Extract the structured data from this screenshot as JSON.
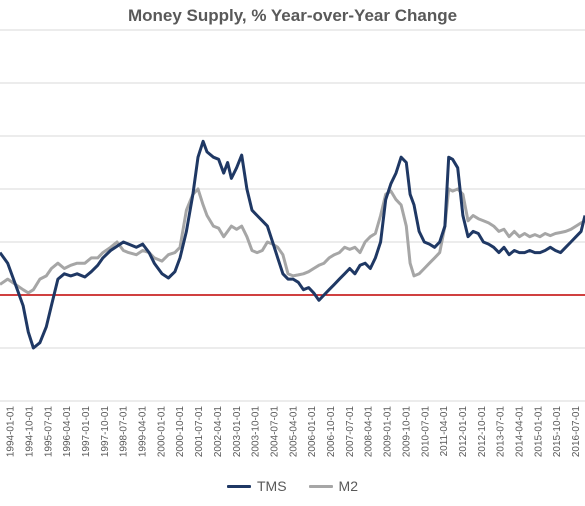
{
  "chart_data": {
    "type": "line",
    "title": "Money Supply, % Year-over-Year Change",
    "xlabel": "",
    "ylabel": "",
    "x_tick_labels": [
      "1994-01-01",
      "1994-10-01",
      "1995-07-01",
      "1996-04-01",
      "1997-01-01",
      "1997-10-01",
      "1998-07-01",
      "1999-04-01",
      "2000-01-01",
      "2000-10-01",
      "2001-07-01",
      "2002-04-01",
      "2003-01-01",
      "2003-10-01",
      "2004-07-01",
      "2005-04-01",
      "2006-01-01",
      "2006-10-01",
      "2007-07-01",
      "2008-04-01",
      "2009-01-01",
      "2009-10-01",
      "2010-07-01",
      "2011-04-01",
      "2012-01-01",
      "2012-10-01",
      "2013-07-01",
      "2014-04-01",
      "2015-01-01",
      "2015-10-01",
      "2016-07-01"
    ],
    "y_gridlines": [
      -10,
      -5,
      0,
      5,
      10,
      15,
      20,
      25
    ],
    "ylim": [
      -10,
      25
    ],
    "reference_line": 0,
    "grid": true,
    "legend_position": "bottom",
    "colors": {
      "TMS": "#1f3864",
      "M2": "#a6a6a6",
      "reference": "#c00000",
      "grid": "#d9d9d9"
    },
    "series": [
      {
        "name": "TMS",
        "x": [
          1994.0,
          1994.3,
          1994.6,
          1994.9,
          1995.1,
          1995.3,
          1995.55,
          1995.8,
          1996.0,
          1996.25,
          1996.5,
          1996.75,
          1997.0,
          1997.3,
          1997.55,
          1997.8,
          1998.0,
          1998.3,
          1998.55,
          1998.8,
          1999.0,
          1999.3,
          1999.55,
          1999.8,
          2000.0,
          2000.3,
          2000.55,
          2000.8,
          2001.0,
          2001.25,
          2001.5,
          2001.7,
          2001.9,
          2002.05,
          2002.3,
          2002.5,
          2002.7,
          2002.85,
          2003.0,
          2003.2,
          2003.4,
          2003.6,
          2003.8,
          2004.0,
          2004.2,
          2004.4,
          2004.6,
          2004.8,
          2005.0,
          2005.2,
          2005.4,
          2005.6,
          2005.8,
          2006.0,
          2006.2,
          2006.4,
          2006.6,
          2006.8,
          2007.0,
          2007.2,
          2007.4,
          2007.6,
          2007.8,
          2008.0,
          2008.2,
          2008.4,
          2008.6,
          2008.8,
          2009.0,
          2009.2,
          2009.4,
          2009.6,
          2009.8,
          2009.95,
          2010.1,
          2010.3,
          2010.5,
          2010.7,
          2010.9,
          2011.1,
          2011.3,
          2011.45,
          2011.6,
          2011.8,
          2012.0,
          2012.2,
          2012.4,
          2012.6,
          2012.8,
          2013.0,
          2013.2,
          2013.4,
          2013.6,
          2013.8,
          2014.0,
          2014.2,
          2014.4,
          2014.6,
          2014.8,
          2015.0,
          2015.2,
          2015.4,
          2015.6,
          2015.8,
          2016.0,
          2016.2,
          2016.4,
          2016.6,
          2016.75
        ],
        "values": [
          4.0,
          3.0,
          1.0,
          -1.0,
          -3.5,
          -5.0,
          -4.5,
          -3.0,
          -1.0,
          1.5,
          2.0,
          1.8,
          2.0,
          1.7,
          2.2,
          2.8,
          3.5,
          4.2,
          4.6,
          5.0,
          4.8,
          4.5,
          4.8,
          4.0,
          3.0,
          2.0,
          1.6,
          2.2,
          3.5,
          6.0,
          9.5,
          13.0,
          14.5,
          13.5,
          13.0,
          12.8,
          11.5,
          12.5,
          11.0,
          12.0,
          13.2,
          10.0,
          8.0,
          7.5,
          7.0,
          6.5,
          5.0,
          3.5,
          2.0,
          1.5,
          1.5,
          1.2,
          0.5,
          0.7,
          0.2,
          -0.5,
          0.0,
          0.5,
          1.0,
          1.5,
          2.0,
          2.5,
          2.0,
          2.8,
          3.0,
          2.5,
          3.5,
          5.0,
          9.0,
          10.5,
          11.5,
          13.0,
          12.5,
          9.5,
          8.5,
          6.0,
          5.0,
          4.8,
          4.5,
          5.0,
          6.5,
          13.0,
          12.8,
          12.0,
          7.5,
          5.5,
          6.0,
          5.8,
          5.0,
          4.8,
          4.5,
          4.0,
          4.5,
          3.8,
          4.2,
          4.0,
          4.0,
          4.2,
          4.0,
          4.0,
          4.2,
          4.5,
          4.2,
          4.0,
          4.5,
          5.0,
          5.5,
          6.0,
          7.5
        ]
      },
      {
        "name": "M2",
        "x": [
          1994.0,
          1994.3,
          1994.6,
          1994.9,
          1995.1,
          1995.3,
          1995.55,
          1995.8,
          1996.0,
          1996.25,
          1996.5,
          1996.75,
          1997.0,
          1997.3,
          1997.55,
          1997.8,
          1998.0,
          1998.3,
          1998.55,
          1998.8,
          1999.0,
          1999.3,
          1999.55,
          1999.8,
          2000.0,
          2000.3,
          2000.55,
          2000.8,
          2001.0,
          2001.25,
          2001.5,
          2001.7,
          2001.9,
          2002.05,
          2002.3,
          2002.5,
          2002.7,
          2002.85,
          2003.0,
          2003.2,
          2003.4,
          2003.6,
          2003.8,
          2004.0,
          2004.2,
          2004.4,
          2004.6,
          2004.8,
          2005.0,
          2005.2,
          2005.4,
          2005.6,
          2005.8,
          2006.0,
          2006.2,
          2006.4,
          2006.6,
          2006.8,
          2007.0,
          2007.2,
          2007.4,
          2007.6,
          2007.8,
          2008.0,
          2008.2,
          2008.4,
          2008.6,
          2008.8,
          2009.0,
          2009.2,
          2009.4,
          2009.6,
          2009.8,
          2009.95,
          2010.1,
          2010.3,
          2010.5,
          2010.7,
          2010.9,
          2011.1,
          2011.3,
          2011.45,
          2011.6,
          2011.8,
          2012.0,
          2012.2,
          2012.4,
          2012.6,
          2012.8,
          2013.0,
          2013.2,
          2013.4,
          2013.6,
          2013.8,
          2014.0,
          2014.2,
          2014.4,
          2014.6,
          2014.8,
          2015.0,
          2015.2,
          2015.4,
          2015.6,
          2015.8,
          2016.0,
          2016.2,
          2016.4,
          2016.6,
          2016.75
        ],
        "values": [
          1.0,
          1.5,
          1.0,
          0.5,
          0.2,
          0.5,
          1.5,
          1.8,
          2.5,
          3.0,
          2.5,
          2.8,
          3.0,
          3.0,
          3.5,
          3.5,
          4.0,
          4.5,
          5.0,
          4.2,
          4.0,
          3.8,
          4.2,
          4.0,
          3.5,
          3.2,
          3.8,
          4.0,
          4.5,
          8.0,
          9.5,
          10.0,
          8.5,
          7.5,
          6.5,
          6.3,
          5.5,
          6.0,
          6.5,
          6.2,
          6.5,
          5.5,
          4.2,
          4.0,
          4.2,
          5.0,
          4.8,
          4.5,
          3.8,
          2.0,
          1.8,
          1.9,
          2.0,
          2.2,
          2.5,
          2.8,
          3.0,
          3.5,
          3.8,
          4.0,
          4.5,
          4.3,
          4.5,
          4.0,
          5.0,
          5.5,
          5.8,
          7.5,
          9.5,
          9.8,
          9.0,
          8.5,
          6.5,
          3.0,
          1.8,
          2.0,
          2.5,
          3.0,
          3.5,
          4.0,
          6.5,
          10.0,
          9.8,
          10.0,
          9.5,
          7.0,
          7.5,
          7.2,
          7.0,
          6.8,
          6.5,
          6.0,
          6.2,
          5.5,
          6.0,
          5.5,
          5.8,
          5.5,
          5.7,
          5.5,
          5.8,
          5.6,
          5.8,
          5.9,
          6.0,
          6.2,
          6.5,
          6.8,
          7.0
        ]
      }
    ]
  }
}
